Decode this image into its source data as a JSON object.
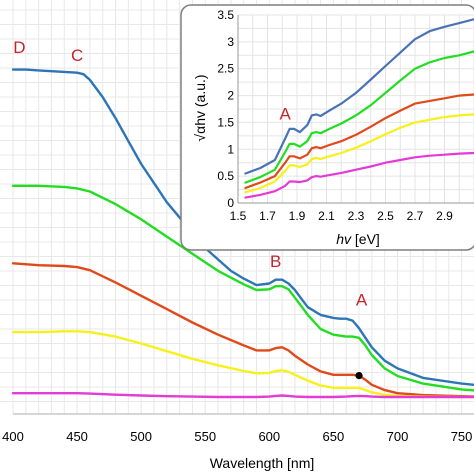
{
  "chart_data": [
    {
      "type": "line",
      "xlabel": "Wavelength [nm]",
      "ylabel": "",
      "xlim": [
        400,
        780
      ],
      "ylim": [
        0,
        1
      ],
      "xticks": [
        400,
        450,
        500,
        550,
        600,
        650,
        700,
        750
      ],
      "grid": true,
      "series": [
        {
          "color": "#2e75b6",
          "x": [
            400,
            410,
            420,
            430,
            440,
            450,
            455,
            460,
            470,
            480,
            490,
            500,
            510,
            520,
            530,
            540,
            550,
            560,
            570,
            580,
            590,
            600,
            605,
            610,
            615,
            620,
            625,
            630,
            640,
            650,
            655,
            660,
            665,
            670,
            675,
            680,
            690,
            700,
            720,
            750,
            780
          ],
          "y": [
            0.857,
            0.857,
            0.855,
            0.853,
            0.851,
            0.849,
            0.845,
            0.83,
            0.785,
            0.73,
            0.67,
            0.61,
            0.56,
            0.51,
            0.47,
            0.43,
            0.39,
            0.36,
            0.33,
            0.31,
            0.293,
            0.297,
            0.307,
            0.307,
            0.297,
            0.28,
            0.257,
            0.235,
            0.215,
            0.207,
            0.205,
            0.205,
            0.2,
            0.18,
            0.155,
            0.13,
            0.095,
            0.075,
            0.05,
            0.035,
            0.025
          ]
        },
        {
          "color": "#22dd22",
          "x": [
            400,
            420,
            440,
            450,
            460,
            480,
            500,
            520,
            540,
            560,
            580,
            590,
            600,
            605,
            610,
            615,
            620,
            630,
            640,
            650,
            660,
            665,
            670,
            675,
            680,
            690,
            700,
            720,
            750,
            780
          ],
          "y": [
            0.553,
            0.553,
            0.55,
            0.546,
            0.538,
            0.505,
            0.465,
            0.42,
            0.375,
            0.33,
            0.295,
            0.28,
            0.282,
            0.29,
            0.29,
            0.282,
            0.26,
            0.215,
            0.178,
            0.163,
            0.158,
            0.158,
            0.155,
            0.135,
            0.11,
            0.075,
            0.055,
            0.035,
            0.02,
            0.012
          ]
        },
        {
          "color": "#e04a1b",
          "x": [
            400,
            420,
            440,
            450,
            460,
            480,
            500,
            520,
            540,
            560,
            580,
            590,
            600,
            605,
            610,
            615,
            620,
            630,
            640,
            650,
            660,
            665,
            670,
            675,
            680,
            690,
            700,
            720,
            750,
            780
          ],
          "y": [
            0.35,
            0.345,
            0.343,
            0.34,
            0.332,
            0.3,
            0.265,
            0.23,
            0.195,
            0.163,
            0.135,
            0.122,
            0.122,
            0.128,
            0.13,
            0.122,
            0.108,
            0.085,
            0.067,
            0.058,
            0.058,
            0.058,
            0.056,
            0.045,
            0.032,
            0.018,
            0.01,
            0.005,
            0.002,
            0.0
          ]
        },
        {
          "color": "#f7f01a",
          "x": [
            400,
            420,
            440,
            450,
            460,
            480,
            500,
            520,
            540,
            560,
            580,
            590,
            600,
            605,
            610,
            615,
            620,
            630,
            640,
            650,
            660,
            665,
            670,
            675,
            680,
            690,
            700,
            720,
            750,
            780
          ],
          "y": [
            0.17,
            0.17,
            0.172,
            0.172,
            0.17,
            0.158,
            0.14,
            0.12,
            0.1,
            0.083,
            0.068,
            0.062,
            0.063,
            0.068,
            0.07,
            0.066,
            0.058,
            0.043,
            0.03,
            0.024,
            0.024,
            0.024,
            0.024,
            0.018,
            0.012,
            0.006,
            0.003,
            0.001,
            0.0,
            0.0
          ]
        },
        {
          "color": "#e43ad6",
          "x": [
            400,
            420,
            440,
            450,
            460,
            480,
            500,
            520,
            540,
            560,
            580,
            590,
            600,
            605,
            610,
            615,
            620,
            630,
            640,
            650,
            660,
            665,
            670,
            675,
            680,
            690,
            700,
            720,
            750,
            780
          ],
          "y": [
            0.01,
            0.01,
            0.01,
            0.01,
            0.009,
            0.006,
            0.004,
            0.002,
            0.001,
            0.0,
            0.0,
            0.0,
            0.001,
            0.003,
            0.004,
            0.003,
            0.001,
            0.0,
            0.0,
            0.0,
            0.001,
            0.002,
            0.003,
            0.002,
            0.001,
            0.0,
            0.0,
            0.0,
            0.0,
            0.0
          ]
        }
      ],
      "marker": {
        "x": 670,
        "y": 0.056,
        "color": "#000000"
      },
      "annotations": [
        {
          "text": "D",
          "x": 405,
          "y": 0.9
        },
        {
          "text": "C",
          "x": 450,
          "y": 0.88
        },
        {
          "text": "B",
          "x": 605,
          "y": 0.34
        },
        {
          "text": "A",
          "x": 672,
          "y": 0.24
        }
      ]
    },
    {
      "type": "line",
      "xlabel": "hv [eV]",
      "ylabel": "√αhv (a.u.)",
      "xlim": [
        1.5,
        3.1
      ],
      "ylim": [
        0,
        3.5
      ],
      "xticks": [
        1.5,
        1.7,
        1.9,
        2.1,
        2.3,
        2.5,
        2.7,
        2.9
      ],
      "yticks": [
        0,
        0.5,
        1,
        1.5,
        2,
        2.5,
        3,
        3.5
      ],
      "grid": true,
      "series": [
        {
          "color": "#4a72b5",
          "x": [
            1.55,
            1.65,
            1.75,
            1.82,
            1.85,
            1.88,
            1.92,
            1.97,
            2.0,
            2.03,
            2.06,
            2.12,
            2.2,
            2.3,
            2.4,
            2.5,
            2.6,
            2.7,
            2.8,
            2.9,
            3.0,
            3.1
          ],
          "y": [
            0.55,
            0.65,
            0.8,
            1.2,
            1.38,
            1.38,
            1.32,
            1.45,
            1.63,
            1.65,
            1.62,
            1.72,
            1.85,
            2.05,
            2.3,
            2.55,
            2.8,
            3.05,
            3.2,
            3.28,
            3.35,
            3.42
          ]
        },
        {
          "color": "#22dd22",
          "x": [
            1.55,
            1.65,
            1.75,
            1.82,
            1.85,
            1.88,
            1.92,
            1.97,
            2.0,
            2.03,
            2.06,
            2.12,
            2.2,
            2.3,
            2.4,
            2.5,
            2.6,
            2.7,
            2.8,
            2.9,
            3.0,
            3.1
          ],
          "y": [
            0.38,
            0.48,
            0.62,
            0.95,
            1.1,
            1.1,
            1.05,
            1.15,
            1.3,
            1.32,
            1.3,
            1.38,
            1.48,
            1.63,
            1.82,
            2.05,
            2.28,
            2.5,
            2.62,
            2.7,
            2.75,
            2.82
          ]
        },
        {
          "color": "#e04a1b",
          "x": [
            1.55,
            1.65,
            1.75,
            1.82,
            1.85,
            1.88,
            1.92,
            1.97,
            2.0,
            2.03,
            2.06,
            2.12,
            2.2,
            2.3,
            2.4,
            2.5,
            2.6,
            2.7,
            2.8,
            2.9,
            3.0,
            3.1
          ],
          "y": [
            0.28,
            0.38,
            0.5,
            0.75,
            0.87,
            0.87,
            0.83,
            0.9,
            1.02,
            1.04,
            1.02,
            1.08,
            1.15,
            1.27,
            1.42,
            1.58,
            1.72,
            1.85,
            1.9,
            1.95,
            2.0,
            2.02
          ]
        },
        {
          "color": "#f7f01a",
          "x": [
            1.55,
            1.65,
            1.75,
            1.82,
            1.85,
            1.88,
            1.92,
            1.97,
            2.0,
            2.03,
            2.06,
            2.12,
            2.2,
            2.3,
            2.4,
            2.5,
            2.6,
            2.7,
            2.8,
            2.9,
            3.0,
            3.1
          ],
          "y": [
            0.2,
            0.28,
            0.4,
            0.6,
            0.7,
            0.7,
            0.67,
            0.72,
            0.82,
            0.84,
            0.82,
            0.87,
            0.93,
            1.03,
            1.15,
            1.28,
            1.4,
            1.5,
            1.55,
            1.6,
            1.63,
            1.65
          ]
        },
        {
          "color": "#e43ad6",
          "x": [
            1.55,
            1.65,
            1.75,
            1.82,
            1.85,
            1.88,
            1.92,
            1.97,
            2.0,
            2.03,
            2.06,
            2.12,
            2.2,
            2.3,
            2.4,
            2.5,
            2.6,
            2.7,
            2.8,
            2.9,
            3.0,
            3.1
          ],
          "y": [
            0.1,
            0.15,
            0.22,
            0.32,
            0.4,
            0.4,
            0.39,
            0.42,
            0.48,
            0.5,
            0.49,
            0.52,
            0.56,
            0.62,
            0.68,
            0.75,
            0.8,
            0.85,
            0.88,
            0.9,
            0.92,
            0.93
          ]
        }
      ],
      "annotations": [
        {
          "text": "A",
          "x": 1.82,
          "y": 1.55
        }
      ]
    }
  ]
}
